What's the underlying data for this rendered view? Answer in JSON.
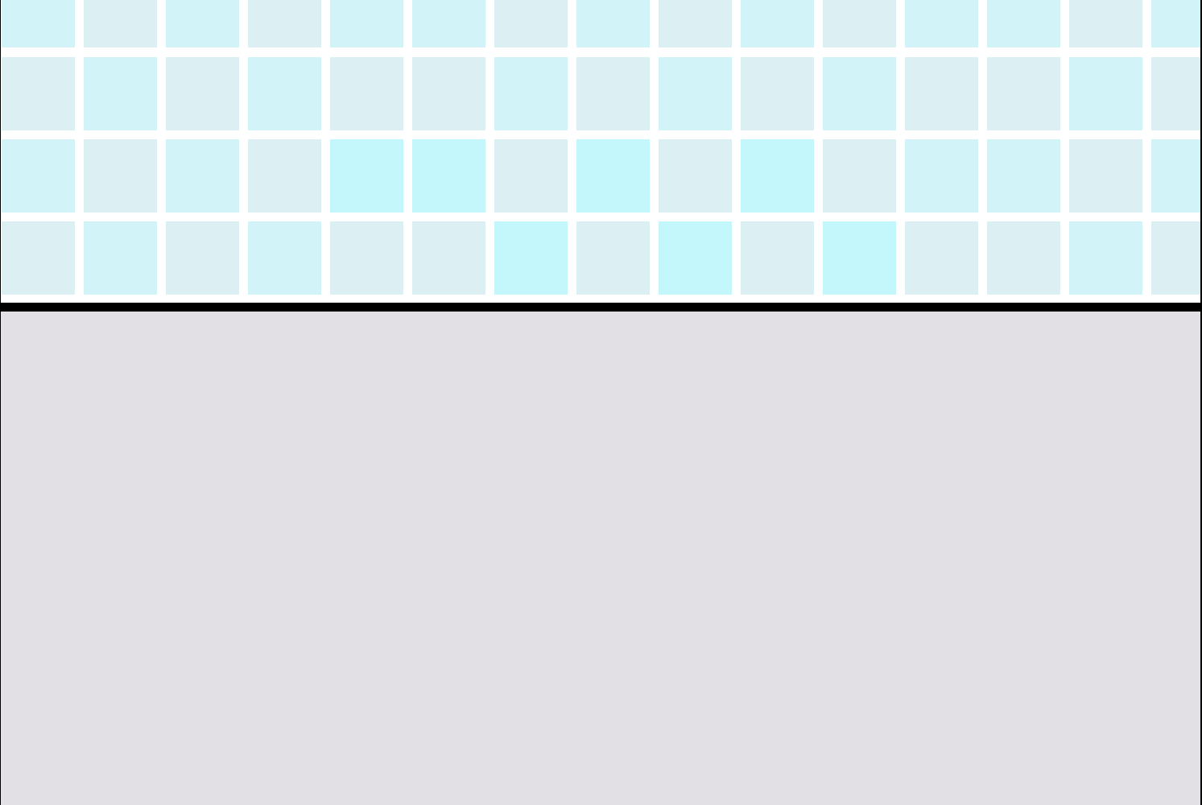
{
  "scene": {
    "description_kind": "tiled-wall-and-floor",
    "colors": {
      "grout": "#ffffff",
      "tile_pale": "#dcf0f3",
      "tile_light": "#d2f3f7",
      "tile_bright": "#c4f7fc",
      "divider": "#000000",
      "floor": "#e2e0e4"
    },
    "tile_rows": [
      [
        "light",
        "pale",
        "light",
        "pale",
        "light",
        "light",
        "pale",
        "light",
        "pale",
        "light",
        "pale",
        "light",
        "light",
        "pale",
        "light"
      ],
      [
        "pale",
        "light",
        "pale",
        "light",
        "pale",
        "pale",
        "light",
        "pale",
        "light",
        "pale",
        "light",
        "pale",
        "pale",
        "light",
        "pale"
      ],
      [
        "light",
        "pale",
        "light",
        "pale",
        "bright",
        "bright",
        "pale",
        "bright",
        "pale",
        "bright",
        "pale",
        "light",
        "light",
        "pale",
        "light"
      ],
      [
        "pale",
        "light",
        "pale",
        "light",
        "pale",
        "pale",
        "bright",
        "pale",
        "bright",
        "pale",
        "bright",
        "pale",
        "pale",
        "light",
        "pale"
      ]
    ]
  }
}
